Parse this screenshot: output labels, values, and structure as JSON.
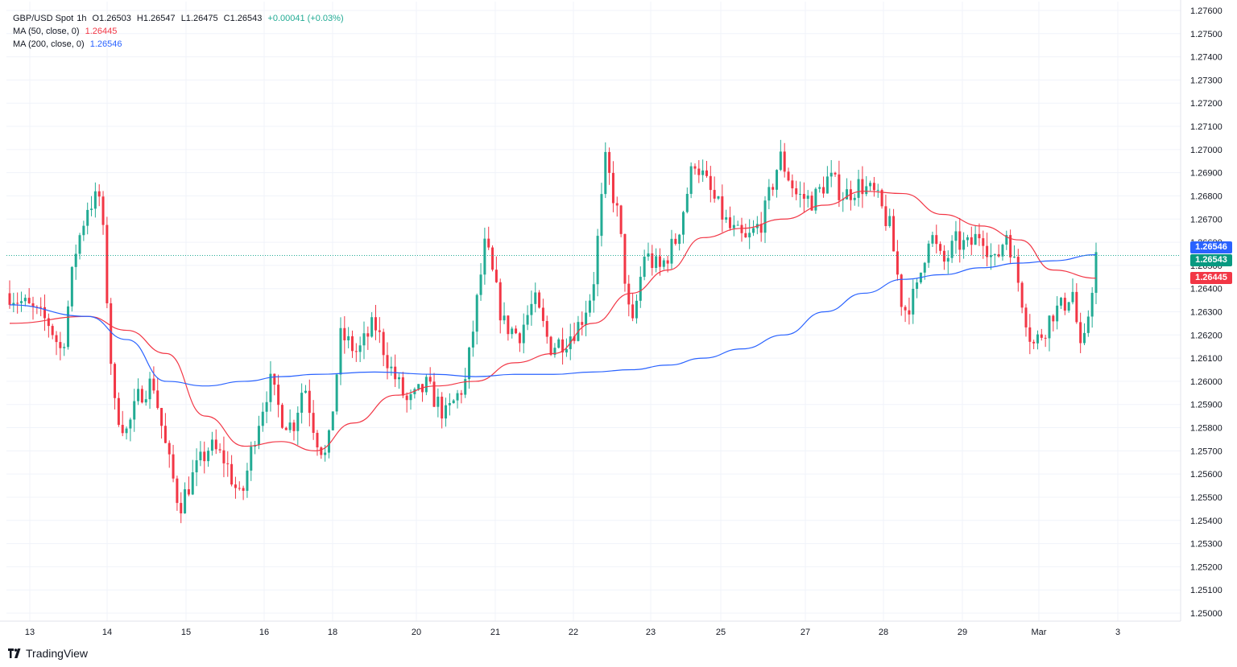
{
  "legend": {
    "symbol": "GBP/USD Spot",
    "interval": "1h",
    "open": "O1.26503",
    "high": "H1.26547",
    "low": "L1.26475",
    "close": "C1.26543",
    "change": "+0.00041 (+0.03%)",
    "ma50_label": "MA (50, close, 0)",
    "ma50_value": "1.26445",
    "ma200_label": "MA (200, close, 0)",
    "ma200_value": "1.26546"
  },
  "brand": "TradingView",
  "price_tags": {
    "ma200": "1.26546",
    "last": "1.26543",
    "ma50": "1.26445"
  },
  "colors": {
    "up": "#22ab94",
    "down": "#f23645",
    "ma50": "#f23645",
    "ma200": "#2962ff",
    "grid": "#f0f3fa",
    "text": "#131722"
  },
  "chart_data": {
    "type": "candlestick",
    "title": "GBP/USD Spot, 1h",
    "ylim": [
      1.2495,
      1.276
    ],
    "grid": true,
    "y_ticks": [
      "1.27600",
      "1.27500",
      "1.27400",
      "1.27300",
      "1.27200",
      "1.27100",
      "1.27000",
      "1.26900",
      "1.26800",
      "1.26700",
      "1.26600",
      "1.26500",
      "1.26400",
      "1.26300",
      "1.26200",
      "1.26100",
      "1.26000",
      "1.25900",
      "1.25800",
      "1.25700",
      "1.25600",
      "1.25500",
      "1.25400",
      "1.25300",
      "1.25200",
      "1.25100",
      "1.25000"
    ],
    "x_ticks": [
      "13",
      "14",
      "15",
      "16",
      "18",
      "20",
      "21",
      "22",
      "23",
      "25",
      "27",
      "28",
      "29",
      "Mar",
      "3"
    ],
    "ohlc_anchors": [
      {
        "date": "13",
        "price": 1.2638
      },
      {
        "date": "13",
        "price": 1.2625
      },
      {
        "date": "13",
        "price": 1.2612
      },
      {
        "date": "13",
        "price": 1.2655
      },
      {
        "date": "13",
        "price": 1.2676
      },
      {
        "date": "13",
        "price": 1.268
      },
      {
        "date": "14",
        "price": 1.259
      },
      {
        "date": "14",
        "price": 1.2578
      },
      {
        "date": "14",
        "price": 1.2595
      },
      {
        "date": "14",
        "price": 1.26
      },
      {
        "date": "14",
        "price": 1.257
      },
      {
        "date": "14",
        "price": 1.2546
      },
      {
        "date": "15",
        "price": 1.256
      },
      {
        "date": "15",
        "price": 1.2572
      },
      {
        "date": "15",
        "price": 1.2566
      },
      {
        "date": "15",
        "price": 1.2548
      },
      {
        "date": "15",
        "price": 1.258
      },
      {
        "date": "16",
        "price": 1.26
      },
      {
        "date": "16",
        "price": 1.2585
      },
      {
        "date": "16",
        "price": 1.258
      },
      {
        "date": "16",
        "price": 1.26
      },
      {
        "date": "16",
        "price": 1.2577
      },
      {
        "date": "16",
        "price": 1.2566
      },
      {
        "date": "18",
        "price": 1.262
      },
      {
        "date": "18",
        "price": 1.2612
      },
      {
        "date": "18",
        "price": 1.2625
      },
      {
        "date": "18",
        "price": 1.2605
      },
      {
        "date": "18",
        "price": 1.259
      },
      {
        "date": "20",
        "price": 1.2598
      },
      {
        "date": "20",
        "price": 1.2585
      },
      {
        "date": "20",
        "price": 1.26
      },
      {
        "date": "20",
        "price": 1.266
      },
      {
        "date": "21",
        "price": 1.2625
      },
      {
        "date": "21",
        "price": 1.262
      },
      {
        "date": "21",
        "price": 1.2635
      },
      {
        "date": "21",
        "price": 1.2615
      },
      {
        "date": "21",
        "price": 1.2618
      },
      {
        "date": "22",
        "price": 1.2625
      },
      {
        "date": "22",
        "price": 1.264
      },
      {
        "date": "22",
        "price": 1.2695
      },
      {
        "date": "22",
        "price": 1.267
      },
      {
        "date": "22",
        "price": 1.262
      },
      {
        "date": "22",
        "price": 1.2655
      },
      {
        "date": "23",
        "price": 1.2648
      },
      {
        "date": "23",
        "price": 1.2662
      },
      {
        "date": "23",
        "price": 1.2696
      },
      {
        "date": "23",
        "price": 1.268
      },
      {
        "date": "25",
        "price": 1.2666
      },
      {
        "date": "25",
        "price": 1.266
      },
      {
        "date": "25",
        "price": 1.267
      },
      {
        "date": "25",
        "price": 1.2697
      },
      {
        "date": "25",
        "price": 1.268
      },
      {
        "date": "27",
        "price": 1.2678
      },
      {
        "date": "27",
        "price": 1.2688
      },
      {
        "date": "27",
        "price": 1.268
      },
      {
        "date": "27",
        "price": 1.2685
      },
      {
        "date": "27",
        "price": 1.268
      },
      {
        "date": "28",
        "price": 1.2666
      },
      {
        "date": "28",
        "price": 1.263
      },
      {
        "date": "28",
        "price": 1.2638
      },
      {
        "date": "28",
        "price": 1.2665
      },
      {
        "date": "28",
        "price": 1.265
      },
      {
        "date": "28",
        "price": 1.266
      },
      {
        "date": "29",
        "price": 1.2658
      },
      {
        "date": "29",
        "price": 1.2665
      },
      {
        "date": "29",
        "price": 1.265
      },
      {
        "date": "29",
        "price": 1.2665
      },
      {
        "date": "29",
        "price": 1.264
      },
      {
        "date": "29",
        "price": 1.2615
      },
      {
        "date": "Mar",
        "price": 1.2622
      },
      {
        "date": "Mar",
        "price": 1.263
      },
      {
        "date": "Mar",
        "price": 1.2632
      },
      {
        "date": "Mar",
        "price": 1.264
      },
      {
        "date": "Mar",
        "price": 1.2608
      },
      {
        "date": "Mar",
        "price": 1.26543
      }
    ],
    "series": [
      {
        "name": "MA (50, close, 0)",
        "points": [
          {
            "date": "13",
            "value": 1.2625
          },
          {
            "date": "13",
            "value": 1.2628
          },
          {
            "date": "14",
            "value": 1.2622
          },
          {
            "date": "14",
            "value": 1.2612
          },
          {
            "date": "15",
            "value": 1.2585
          },
          {
            "date": "15",
            "value": 1.2572
          },
          {
            "date": "16",
            "value": 1.2574
          },
          {
            "date": "16",
            "value": 1.257
          },
          {
            "date": "18",
            "value": 1.2582
          },
          {
            "date": "18",
            "value": 1.2594
          },
          {
            "date": "20",
            "value": 1.2598
          },
          {
            "date": "20",
            "value": 1.26
          },
          {
            "date": "21",
            "value": 1.2608
          },
          {
            "date": "21",
            "value": 1.2612
          },
          {
            "date": "22",
            "value": 1.2625
          },
          {
            "date": "22",
            "value": 1.2638
          },
          {
            "date": "23",
            "value": 1.2648
          },
          {
            "date": "23",
            "value": 1.2662
          },
          {
            "date": "25",
            "value": 1.2666
          },
          {
            "date": "25",
            "value": 1.267
          },
          {
            "date": "27",
            "value": 1.2676
          },
          {
            "date": "27",
            "value": 1.2682
          },
          {
            "date": "28",
            "value": 1.2681
          },
          {
            "date": "28",
            "value": 1.2672
          },
          {
            "date": "29",
            "value": 1.2667
          },
          {
            "date": "29",
            "value": 1.2661
          },
          {
            "date": "Mar",
            "value": 1.2648
          },
          {
            "date": "Mar",
            "value": 1.26445
          }
        ]
      },
      {
        "name": "MA (200, close, 0)",
        "points": [
          {
            "date": "13",
            "value": 1.2633
          },
          {
            "date": "13",
            "value": 1.2628
          },
          {
            "date": "14",
            "value": 1.2618
          },
          {
            "date": "14",
            "value": 1.26
          },
          {
            "date": "15",
            "value": 1.2598
          },
          {
            "date": "15",
            "value": 1.26
          },
          {
            "date": "16",
            "value": 1.2602
          },
          {
            "date": "16",
            "value": 1.2603
          },
          {
            "date": "18",
            "value": 1.2604
          },
          {
            "date": "20",
            "value": 1.2603
          },
          {
            "date": "20",
            "value": 1.2602
          },
          {
            "date": "21",
            "value": 1.2603
          },
          {
            "date": "21",
            "value": 1.2603
          },
          {
            "date": "22",
            "value": 1.2604
          },
          {
            "date": "22",
            "value": 1.2605
          },
          {
            "date": "23",
            "value": 1.2607
          },
          {
            "date": "23",
            "value": 1.261
          },
          {
            "date": "25",
            "value": 1.2614
          },
          {
            "date": "25",
            "value": 1.262
          },
          {
            "date": "27",
            "value": 1.263
          },
          {
            "date": "27",
            "value": 1.2638
          },
          {
            "date": "28",
            "value": 1.2644
          },
          {
            "date": "28",
            "value": 1.2646
          },
          {
            "date": "29",
            "value": 1.2649
          },
          {
            "date": "29",
            "value": 1.2651
          },
          {
            "date": "Mar",
            "value": 1.2652
          },
          {
            "date": "Mar",
            "value": 1.26546
          }
        ]
      }
    ],
    "last_price_line": 1.26543
  }
}
